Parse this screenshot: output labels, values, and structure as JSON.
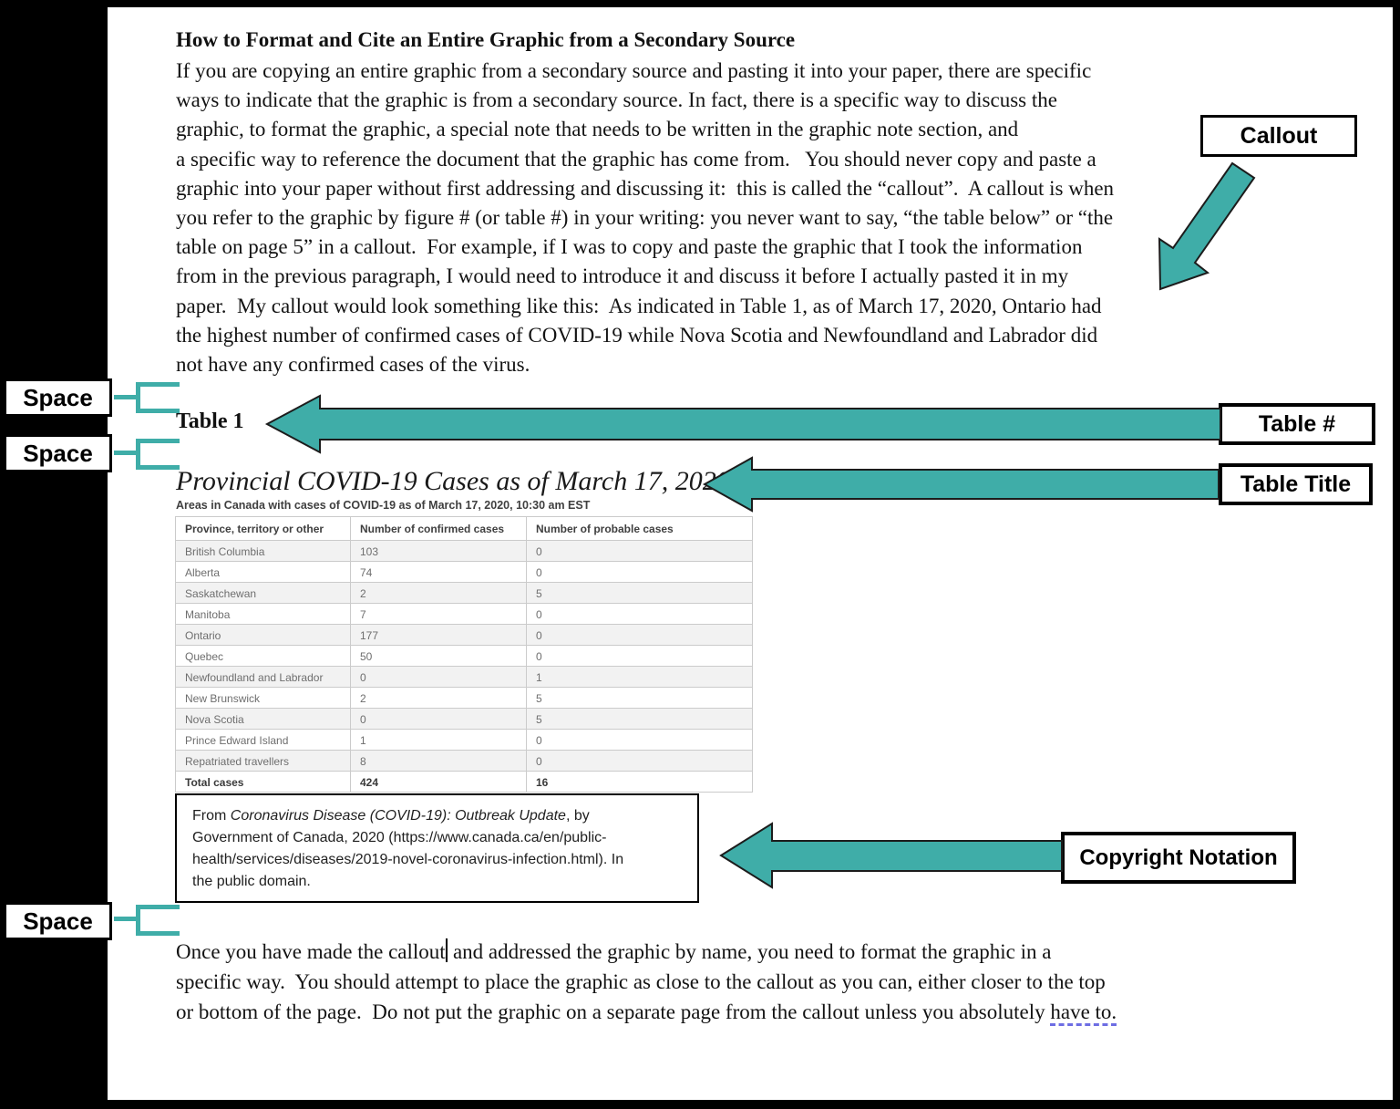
{
  "theme": {
    "teal": "#3FADA8",
    "grammar_underline": "#6D6DE3",
    "table_alt_row": "#F2F2F2",
    "table_border": "#CBCBCB",
    "table_text": "#6E6E6E",
    "table_header_text": "#3F3F3F"
  },
  "document": {
    "heading": "How to Format and Cite an Entire Graphic from a Secondary Source",
    "paragraph1": "If you are copying an entire graphic from a secondary source and pasting it into your paper, there are specific\nways to indicate that the graphic is from a secondary source. In fact, there is a specific way to discuss the\ngraphic, to format the graphic, a special note that needs to be written in the graphic note section, and\na specific way to reference the document that the graphic has come from.   You should never copy and paste a\ngraphic into your paper without first addressing and discussing it:  this is called the “callout”.  A callout is when\nyou refer to the graphic by figure # (or table #) in your writing: you never want to say, “the table below” or “the\ntable on page 5” in a callout.  For example, if I was to copy and paste the graphic that I took the information\nfrom in the previous paragraph, I would need to introduce it and discuss it before I actually pasted it in my\npaper.  My callout would look something like this:  As indicated in Table 1, as of March 17, 2020, Ontario had\nthe highest number of confirmed cases of COVID-19 while Nova Scotia and Newfoundland and Labrador did\nnot have any confirmed cases of the virus.",
    "paragraph2_part1": "Once you have made the callout",
    "paragraph2_part2": " and addressed the graphic by name, you need to format the graphic in a\nspecific way.  You should attempt to place the graphic as close to the callout as you can, either closer to the top\nor bottom of the page.  Do not put the graphic on a separate page from the callout unless you absolutely ",
    "paragraph2_underlined": "have to."
  },
  "table_figure": {
    "label": "Table 1",
    "title": "Provincial COVID-19 Cases as of March 17, 2020",
    "subtitle": "Areas in Canada with cases of COVID-19 as of March 17, 2020, 10:30 am EST",
    "columns": [
      "Province, territory or other",
      "Number of confirmed cases",
      "Number of probable cases"
    ],
    "rows": [
      [
        "British Columbia",
        "103",
        "0"
      ],
      [
        "Alberta",
        "74",
        "0"
      ],
      [
        "Saskatchewan",
        "2",
        "5"
      ],
      [
        "Manitoba",
        "7",
        "0"
      ],
      [
        "Ontario",
        "177",
        "0"
      ],
      [
        "Quebec",
        "50",
        "0"
      ],
      [
        "Newfoundland and Labrador",
        "0",
        "1"
      ],
      [
        "New Brunswick",
        "2",
        "5"
      ],
      [
        "Nova Scotia",
        "0",
        "5"
      ],
      [
        "Prince Edward Island",
        "1",
        "0"
      ],
      [
        "Repatriated travellers",
        "8",
        "0"
      ]
    ],
    "total_row": [
      "Total cases",
      "424",
      "16"
    ]
  },
  "copyright": {
    "prefix": "From ",
    "source_title": "Coronavirus Disease (COVID-19): Outbreak Update",
    "suffix": ", by\nGovernment of Canada, 2020 (https://www.canada.ca/en/public-\nhealth/services/diseases/2019-novel-coronavirus-infection.html). In\nthe public domain."
  },
  "annotations": {
    "callout_label": "Callout",
    "table_number_label": "Table #",
    "table_title_label": "Table Title",
    "copyright_label": "Copyright Notation",
    "space_label": "Space"
  }
}
